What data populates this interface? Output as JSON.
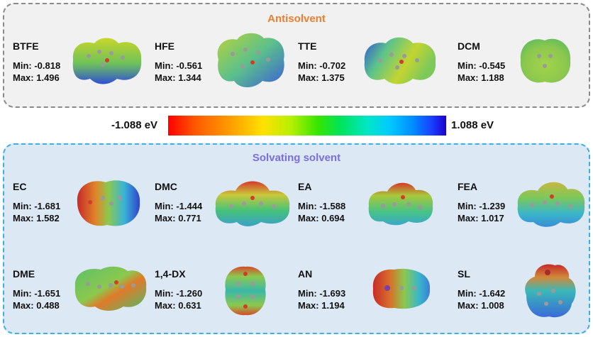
{
  "antisolvent": {
    "title": "Antisolvent",
    "molecules": [
      {
        "name": "BTFE",
        "min": "Min: -0.818",
        "max": "Max: 1.496"
      },
      {
        "name": "HFE",
        "min": "Min: -0.561",
        "max": "Max: 1.344"
      },
      {
        "name": "TTE",
        "min": "Min: -0.702",
        "max": "Max: 1.375"
      },
      {
        "name": "DCM",
        "min": "Min: -0.545",
        "max": "Max: 1.188"
      }
    ]
  },
  "colorbar": {
    "min_label": "-1.088 eV",
    "max_label": "1.088 eV",
    "colors": [
      "#ff0000",
      "#ff9b00",
      "#ffe100",
      "#34e600",
      "#00e6c8",
      "#008cff",
      "#1a00cc"
    ]
  },
  "solvating": {
    "title": "Solvating solvent",
    "molecules": [
      {
        "name": "EC",
        "min": "Min: -1.681",
        "max": "Max: 1.582"
      },
      {
        "name": "DMC",
        "min": "Min: -1.444",
        "max": "Max: 0.771"
      },
      {
        "name": "EA",
        "min": "Min: -1.588",
        "max": "Max: 0.694"
      },
      {
        "name": "FEA",
        "min": "Min: -1.239",
        "max": "Max: 1.017"
      },
      {
        "name": "DME",
        "min": "Min: -1.651",
        "max": "Max: 0.488"
      },
      {
        "name": "1,4-DX",
        "min": "Min: -1.260",
        "max": "Max: 0.631"
      },
      {
        "name": "AN",
        "min": "Min: -1.693",
        "max": "Max: 1.194"
      },
      {
        "name": "SL",
        "min": "Min: -1.642",
        "max": "Max: 1.008"
      }
    ]
  }
}
